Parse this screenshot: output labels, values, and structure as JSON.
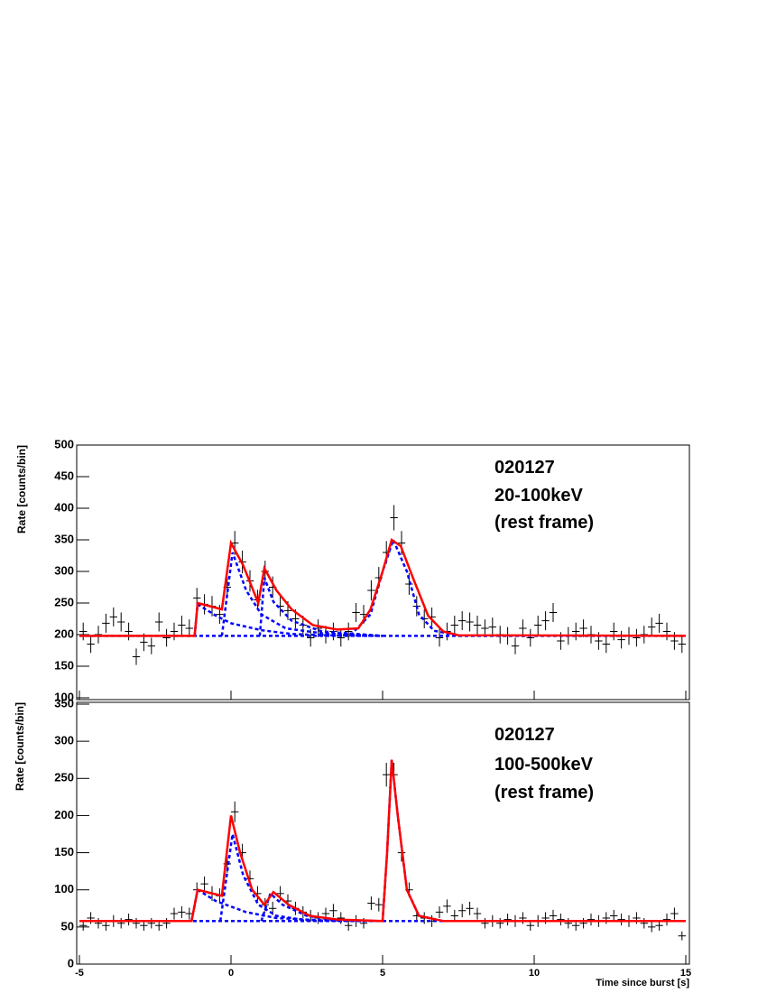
{
  "chart_data": [
    {
      "type": "scatter",
      "annotations": [
        "020127",
        "20-100keV",
        "(rest frame)"
      ],
      "ylabel": "Rate [counts/bin]",
      "xlim": [
        -5,
        15
      ],
      "xticks": [
        -5,
        0,
        5,
        10,
        15
      ],
      "ylim": [
        100,
        500
      ],
      "yticks": [
        100,
        150,
        200,
        250,
        300,
        350,
        400,
        450,
        500
      ],
      "color": "#000000",
      "xerr": 0.125,
      "x": [
        -4.875,
        -4.625,
        -4.375,
        -4.125,
        -3.875,
        -3.625,
        -3.375,
        -3.125,
        -2.875,
        -2.625,
        -2.375,
        -2.125,
        -1.875,
        -1.625,
        -1.375,
        -1.125,
        -0.875,
        -0.625,
        -0.375,
        -0.125,
        0.125,
        0.375,
        0.625,
        0.875,
        1.125,
        1.375,
        1.625,
        1.875,
        2.125,
        2.375,
        2.625,
        2.875,
        3.125,
        3.375,
        3.625,
        3.875,
        4.125,
        4.375,
        4.625,
        4.875,
        5.125,
        5.375,
        5.625,
        5.875,
        6.125,
        6.375,
        6.625,
        6.875,
        7.125,
        7.375,
        7.625,
        7.875,
        8.125,
        8.375,
        8.625,
        8.875,
        9.125,
        9.375,
        9.625,
        9.875,
        10.125,
        10.375,
        10.625,
        10.875,
        11.125,
        11.375,
        11.625,
        11.875,
        12.125,
        12.375,
        12.625,
        12.875,
        13.125,
        13.375,
        13.625,
        13.875,
        14.125,
        14.375,
        14.625,
        14.875
      ],
      "values": [
        205,
        185,
        200,
        218,
        228,
        220,
        205,
        165,
        188,
        182,
        220,
        195,
        205,
        215,
        210,
        258,
        248,
        245,
        232,
        275,
        345,
        315,
        285,
        255,
        300,
        275,
        245,
        238,
        225,
        215,
        195,
        210,
        200,
        205,
        195,
        205,
        235,
        232,
        270,
        290,
        330,
        385,
        345,
        280,
        245,
        225,
        228,
        195,
        205,
        215,
        222,
        220,
        215,
        210,
        212,
        200,
        198,
        182,
        210,
        195,
        215,
        222,
        235,
        190,
        198,
        205,
        210,
        200,
        190,
        185,
        205,
        192,
        198,
        195,
        200,
        212,
        218,
        205,
        190,
        185
      ],
      "errors": [
        14,
        14,
        14,
        15,
        15,
        15,
        14,
        13,
        14,
        13,
        15,
        14,
        14,
        15,
        14,
        16,
        16,
        16,
        15,
        17,
        19,
        18,
        17,
        16,
        17,
        17,
        16,
        15,
        15,
        15,
        14,
        14,
        14,
        14,
        14,
        14,
        15,
        15,
        16,
        17,
        18,
        20,
        19,
        17,
        16,
        15,
        15,
        14,
        14,
        15,
        15,
        15,
        15,
        14,
        15,
        14,
        14,
        13,
        14,
        14,
        15,
        15,
        15,
        14,
        14,
        14,
        14,
        14,
        14,
        14,
        14,
        14,
        14,
        14,
        14,
        15,
        15,
        14,
        14,
        14
      ],
      "fits": [
        {
          "color": "#0000ff",
          "dashed": true,
          "x": [
            -5,
            15
          ],
          "values": [
            198,
            198
          ]
        },
        {
          "color": "#0000ff",
          "dashed": true,
          "x": [
            -1.2,
            -1.1,
            -0.5,
            0,
            1,
            2,
            3,
            5
          ],
          "values": [
            198,
            248,
            230,
            218,
            207,
            201,
            199,
            198
          ]
        },
        {
          "color": "#0000ff",
          "dashed": true,
          "x": [
            -0.3,
            0.05,
            0.5,
            1,
            1.8,
            3,
            5
          ],
          "values": [
            198,
            330,
            270,
            232,
            210,
            202,
            198
          ]
        },
        {
          "color": "#0000ff",
          "dashed": true,
          "x": [
            0.95,
            1.1,
            1.4,
            2,
            3,
            5
          ],
          "values": [
            198,
            290,
            252,
            222,
            205,
            198
          ]
        },
        {
          "color": "#0000ff",
          "dashed": true,
          "x": [
            3.5,
            4,
            4.6,
            5,
            5.35,
            5.8,
            6.2,
            6.7,
            7.5
          ],
          "values": [
            198,
            202,
            232,
            300,
            350,
            300,
            232,
            206,
            199
          ]
        },
        {
          "color": "#ff0000",
          "dashed": false,
          "x": [
            -5,
            -1.2,
            -1.1,
            -0.3,
            0,
            0.4,
            0.9,
            1.1,
            1.5,
            2,
            2.7,
            3.5,
            4.2,
            4.6,
            5,
            5.3,
            5.6,
            6,
            6.5,
            7,
            7.5,
            15
          ],
          "values": [
            198,
            198,
            250,
            240,
            345,
            310,
            250,
            305,
            270,
            240,
            215,
            208,
            210,
            240,
            300,
            350,
            340,
            290,
            230,
            205,
            199,
            198
          ]
        }
      ]
    },
    {
      "type": "scatter",
      "annotations": [
        "020127",
        "100-500keV",
        "(rest frame)"
      ],
      "ylabel": "Rate [counts/bin]",
      "xlabel": "Time since burst [s]",
      "xlim": [
        -5,
        15
      ],
      "xticks": [
        -5,
        0,
        5,
        10,
        15
      ],
      "ylim": [
        0,
        350
      ],
      "yticks": [
        0,
        50,
        100,
        150,
        200,
        250,
        300,
        350
      ],
      "color": "#000000",
      "xerr": 0.125,
      "x": [
        -4.875,
        -4.625,
        -4.375,
        -4.125,
        -3.875,
        -3.625,
        -3.375,
        -3.125,
        -2.875,
        -2.625,
        -2.375,
        -2.125,
        -1.875,
        -1.625,
        -1.375,
        -1.125,
        -0.875,
        -0.625,
        -0.375,
        -0.125,
        0.125,
        0.375,
        0.625,
        0.875,
        1.125,
        1.375,
        1.625,
        1.875,
        2.125,
        2.375,
        2.625,
        2.875,
        3.125,
        3.375,
        3.625,
        3.875,
        4.125,
        4.375,
        4.625,
        4.875,
        5.125,
        5.375,
        5.625,
        5.875,
        6.125,
        6.375,
        6.625,
        6.875,
        7.125,
        7.375,
        7.625,
        7.875,
        8.125,
        8.375,
        8.625,
        8.875,
        9.125,
        9.375,
        9.625,
        9.875,
        10.125,
        10.375,
        10.625,
        10.875,
        11.125,
        11.375,
        11.625,
        11.875,
        12.125,
        12.375,
        12.625,
        12.875,
        13.125,
        13.375,
        13.625,
        13.875,
        14.125,
        14.375,
        14.625,
        14.875
      ],
      "values": [
        52,
        62,
        55,
        52,
        58,
        55,
        60,
        55,
        52,
        55,
        52,
        55,
        68,
        70,
        68,
        100,
        108,
        95,
        92,
        135,
        205,
        150,
        115,
        95,
        80,
        75,
        95,
        85,
        75,
        70,
        65,
        62,
        68,
        72,
        62,
        52,
        58,
        55,
        82,
        80,
        255,
        255,
        150,
        100,
        65,
        62,
        58,
        70,
        78,
        65,
        72,
        75,
        68,
        55,
        58,
        55,
        60,
        58,
        62,
        52,
        58,
        62,
        65,
        60,
        55,
        52,
        55,
        60,
        58,
        62,
        65,
        60,
        58,
        62,
        55,
        50,
        52,
        60,
        68,
        38
      ],
      "errors": [
        7,
        8,
        7,
        7,
        8,
        7,
        8,
        7,
        7,
        7,
        7,
        7,
        8,
        8,
        8,
        10,
        10,
        10,
        10,
        12,
        14,
        12,
        11,
        10,
        9,
        9,
        10,
        9,
        9,
        8,
        8,
        8,
        8,
        9,
        8,
        7,
        8,
        7,
        9,
        9,
        16,
        16,
        12,
        10,
        8,
        8,
        8,
        8,
        9,
        8,
        9,
        9,
        8,
        7,
        8,
        7,
        8,
        8,
        8,
        7,
        8,
        8,
        8,
        8,
        7,
        7,
        7,
        8,
        8,
        8,
        8,
        8,
        8,
        8,
        7,
        7,
        7,
        8,
        8,
        6
      ],
      "fits": [
        {
          "color": "#0000ff",
          "dashed": true,
          "x": [
            -5,
            15
          ],
          "values": [
            58,
            58
          ]
        },
        {
          "color": "#0000ff",
          "dashed": true,
          "x": [
            -1.3,
            -1.1,
            -0.5,
            0.5,
            1.5,
            3,
            5
          ],
          "values": [
            58,
            100,
            85,
            70,
            62,
            59,
            58
          ]
        },
        {
          "color": "#0000ff",
          "dashed": true,
          "x": [
            -0.35,
            0.05,
            0.4,
            0.9,
            1.5,
            2.5,
            4
          ],
          "values": [
            58,
            175,
            120,
            80,
            65,
            59,
            58
          ]
        },
        {
          "color": "#0000ff",
          "dashed": true,
          "x": [
            1.0,
            1.3,
            1.7,
            2.5,
            3.5
          ],
          "values": [
            58,
            95,
            80,
            65,
            59
          ]
        },
        {
          "color": "#0000ff",
          "dashed": true,
          "x": [
            5,
            5.15,
            5.3,
            5.5,
            5.8,
            6.2,
            7
          ],
          "values": [
            58,
            150,
            275,
            200,
            100,
            65,
            58
          ]
        },
        {
          "color": "#ff0000",
          "dashed": false,
          "x": [
            -5,
            -1.3,
            -1.1,
            -0.3,
            0,
            0.3,
            0.7,
            1.1,
            1.4,
            1.9,
            2.6,
            3.5,
            5,
            5.15,
            5.3,
            5.5,
            5.8,
            6.2,
            7,
            15
          ],
          "values": [
            58,
            58,
            100,
            92,
            200,
            150,
            100,
            80,
            97,
            80,
            65,
            60,
            58,
            150,
            275,
            200,
            100,
            65,
            58,
            58
          ]
        }
      ]
    }
  ]
}
